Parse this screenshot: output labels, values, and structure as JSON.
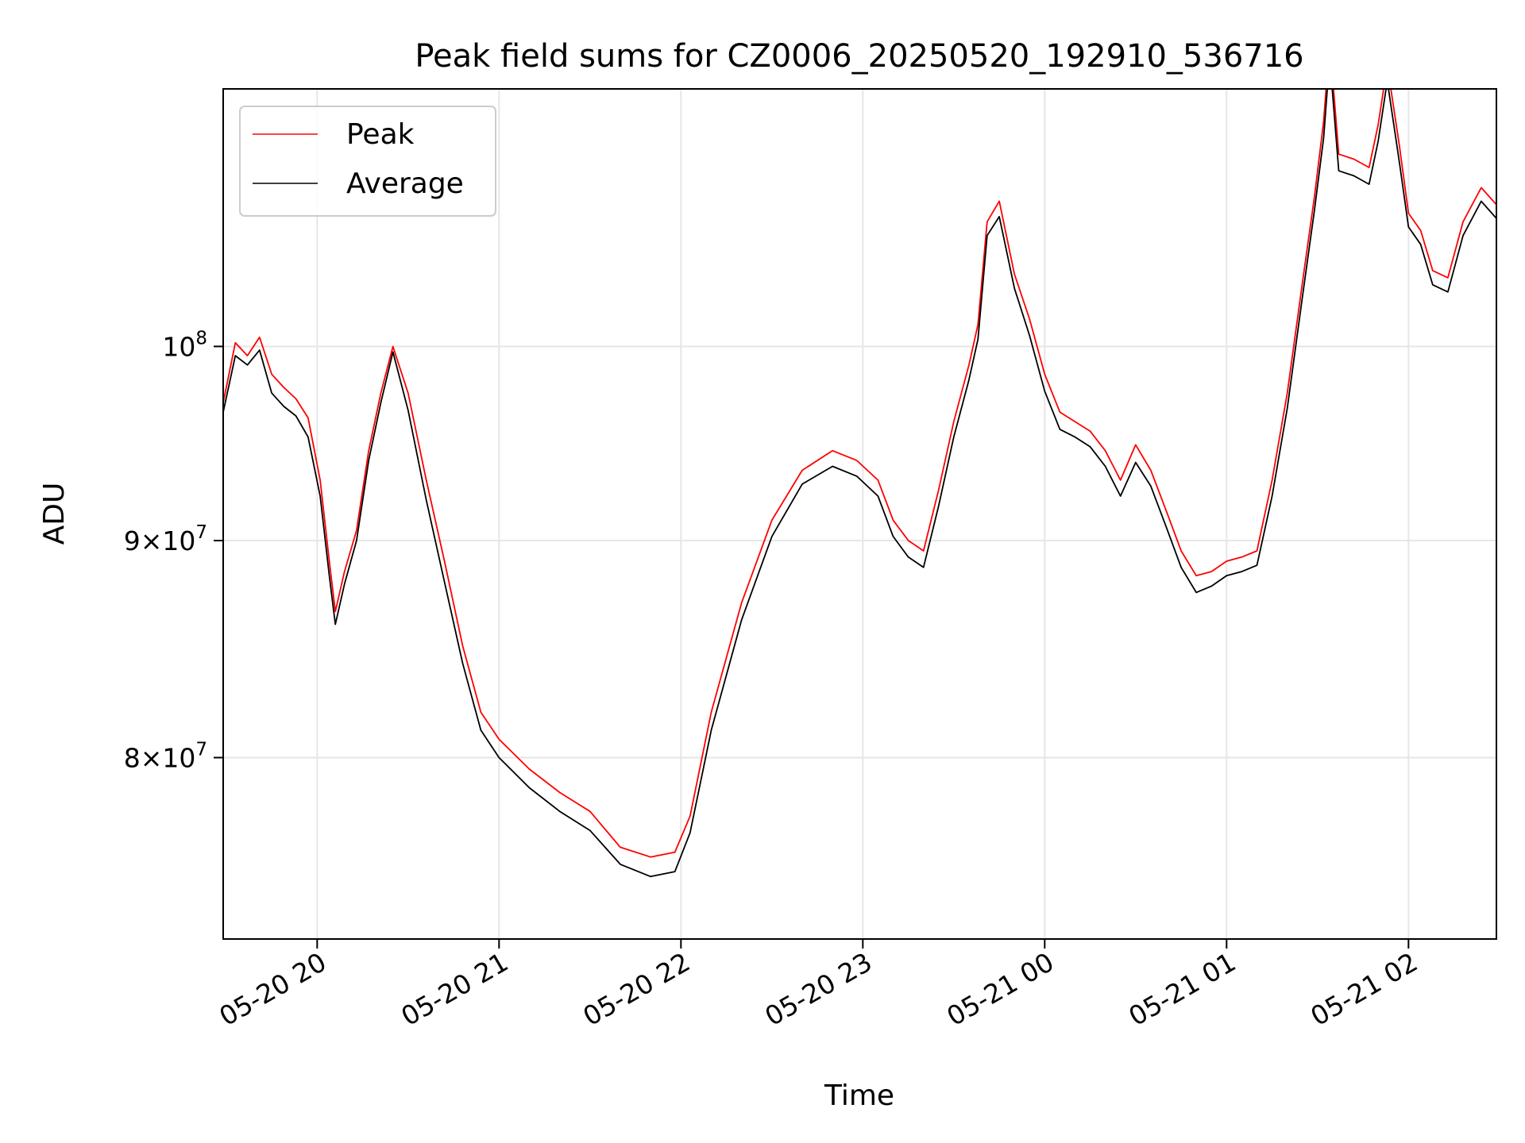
{
  "chart_data": {
    "type": "line",
    "title": "Peak field sums for CZ0006_20250520_192910_536716",
    "xlabel": "Time",
    "ylabel": "ADU",
    "y_scale": "log",
    "xlim": [
      "2025-05-20 19:29",
      "2025-05-21 02:29"
    ],
    "ylim": [
      72500000,
      115000000
    ],
    "x_ticks": [
      {
        "value": "2025-05-20 20:00",
        "label": "05-20 20"
      },
      {
        "value": "2025-05-20 21:00",
        "label": "05-20 21"
      },
      {
        "value": "2025-05-20 22:00",
        "label": "05-20 22"
      },
      {
        "value": "2025-05-20 23:00",
        "label": "05-20 23"
      },
      {
        "value": "2025-05-21 00:00",
        "label": "05-21 00"
      },
      {
        "value": "2025-05-21 01:00",
        "label": "05-21 01"
      },
      {
        "value": "2025-05-21 02:00",
        "label": "05-21 02"
      }
    ],
    "y_ticks": [
      {
        "value": 80000000,
        "mantissa": "8",
        "base": "10",
        "exponent": "7"
      },
      {
        "value": 90000000,
        "mantissa": "9",
        "base": "10",
        "exponent": "7"
      },
      {
        "value": 100000000,
        "mantissa": "",
        "base": "10",
        "exponent": "8"
      }
    ],
    "grid": true,
    "legend_position": "top-left",
    "series": [
      {
        "name": "Peak",
        "color": "#ff0000",
        "x": [
          "2025-05-20 19:29",
          "2025-05-20 19:33",
          "2025-05-20 19:37",
          "2025-05-20 19:41",
          "2025-05-20 19:45",
          "2025-05-20 19:49",
          "2025-05-20 19:53",
          "2025-05-20 19:57",
          "2025-05-20 20:01",
          "2025-05-20 20:04",
          "2025-05-20 20:06",
          "2025-05-20 20:09",
          "2025-05-20 20:13",
          "2025-05-20 20:17",
          "2025-05-20 20:21",
          "2025-05-20 20:25",
          "2025-05-20 20:30",
          "2025-05-20 20:36",
          "2025-05-20 20:42",
          "2025-05-20 20:48",
          "2025-05-20 20:54",
          "2025-05-20 21:00",
          "2025-05-20 21:10",
          "2025-05-20 21:20",
          "2025-05-20 21:30",
          "2025-05-20 21:40",
          "2025-05-20 21:50",
          "2025-05-20 21:58",
          "2025-05-20 22:03",
          "2025-05-20 22:10",
          "2025-05-20 22:20",
          "2025-05-20 22:30",
          "2025-05-20 22:40",
          "2025-05-20 22:50",
          "2025-05-20 22:58",
          "2025-05-20 23:05",
          "2025-05-20 23:10",
          "2025-05-20 23:15",
          "2025-05-20 23:20",
          "2025-05-20 23:25",
          "2025-05-20 23:30",
          "2025-05-20 23:35",
          "2025-05-20 23:38",
          "2025-05-20 23:41",
          "2025-05-20 23:45",
          "2025-05-20 23:50",
          "2025-05-20 23:55",
          "2025-05-21 00:00",
          "2025-05-21 00:05",
          "2025-05-21 00:10",
          "2025-05-21 00:15",
          "2025-05-21 00:20",
          "2025-05-21 00:25",
          "2025-05-21 00:30",
          "2025-05-21 00:35",
          "2025-05-21 00:40",
          "2025-05-21 00:45",
          "2025-05-21 00:50",
          "2025-05-21 00:55",
          "2025-05-21 01:00",
          "2025-05-21 01:05",
          "2025-05-21 01:10",
          "2025-05-21 01:15",
          "2025-05-21 01:20",
          "2025-05-21 01:25",
          "2025-05-21 01:29",
          "2025-05-21 01:32",
          "2025-05-21 01:34",
          "2025-05-21 01:37",
          "2025-05-21 01:42",
          "2025-05-21 01:47",
          "2025-05-21 01:50",
          "2025-05-21 01:53",
          "2025-05-21 01:57",
          "2025-05-21 02:00",
          "2025-05-21 02:04",
          "2025-05-21 02:08",
          "2025-05-21 02:13",
          "2025-05-21 02:18",
          "2025-05-21 02:24",
          "2025-05-21 02:29"
        ],
        "values": [
          97000000,
          100200000,
          99500000,
          100500000,
          98500000,
          97800000,
          97200000,
          96200000,
          93000000,
          89000000,
          86600000,
          88500000,
          90500000,
          94500000,
          97500000,
          100000000,
          97500000,
          93000000,
          89000000,
          85000000,
          82000000,
          80800000,
          79500000,
          78500000,
          77700000,
          76200000,
          75800000,
          76000000,
          77500000,
          82000000,
          87000000,
          91000000,
          93500000,
          94500000,
          94000000,
          93000000,
          91000000,
          90000000,
          89500000,
          92500000,
          96000000,
          99000000,
          101200000,
          107000000,
          108200000,
          104000000,
          101500000,
          98500000,
          96500000,
          96000000,
          95500000,
          94500000,
          93000000,
          94800000,
          93500000,
          91500000,
          89500000,
          88300000,
          88500000,
          89000000,
          89200000,
          89500000,
          93000000,
          97500000,
          103500000,
          108500000,
          113000000,
          118000000,
          111000000,
          110700000,
          110200000,
          112800000,
          116500000,
          111500000,
          107500000,
          106500000,
          104200000,
          103800000,
          107000000,
          109000000,
          108000000
        ]
      },
      {
        "name": "Average",
        "color": "#000000",
        "x": [
          "2025-05-20 19:29",
          "2025-05-20 19:33",
          "2025-05-20 19:37",
          "2025-05-20 19:41",
          "2025-05-20 19:45",
          "2025-05-20 19:49",
          "2025-05-20 19:53",
          "2025-05-20 19:57",
          "2025-05-20 20:01",
          "2025-05-20 20:04",
          "2025-05-20 20:06",
          "2025-05-20 20:09",
          "2025-05-20 20:13",
          "2025-05-20 20:17",
          "2025-05-20 20:21",
          "2025-05-20 20:25",
          "2025-05-20 20:30",
          "2025-05-20 20:36",
          "2025-05-20 20:42",
          "2025-05-20 20:48",
          "2025-05-20 20:54",
          "2025-05-20 21:00",
          "2025-05-20 21:10",
          "2025-05-20 21:20",
          "2025-05-20 21:30",
          "2025-05-20 21:40",
          "2025-05-20 21:50",
          "2025-05-20 21:58",
          "2025-05-20 22:03",
          "2025-05-20 22:10",
          "2025-05-20 22:20",
          "2025-05-20 22:30",
          "2025-05-20 22:40",
          "2025-05-20 22:50",
          "2025-05-20 22:58",
          "2025-05-20 23:05",
          "2025-05-20 23:10",
          "2025-05-20 23:15",
          "2025-05-20 23:20",
          "2025-05-20 23:25",
          "2025-05-20 23:30",
          "2025-05-20 23:35",
          "2025-05-20 23:38",
          "2025-05-20 23:41",
          "2025-05-20 23:45",
          "2025-05-20 23:50",
          "2025-05-20 23:55",
          "2025-05-21 00:00",
          "2025-05-21 00:05",
          "2025-05-21 00:10",
          "2025-05-21 00:15",
          "2025-05-21 00:20",
          "2025-05-21 00:25",
          "2025-05-21 00:30",
          "2025-05-21 00:35",
          "2025-05-21 00:40",
          "2025-05-21 00:45",
          "2025-05-21 00:50",
          "2025-05-21 00:55",
          "2025-05-21 01:00",
          "2025-05-21 01:05",
          "2025-05-21 01:10",
          "2025-05-21 01:15",
          "2025-05-21 01:20",
          "2025-05-21 01:25",
          "2025-05-21 01:29",
          "2025-05-21 01:32",
          "2025-05-21 01:34",
          "2025-05-21 01:37",
          "2025-05-21 01:42",
          "2025-05-21 01:47",
          "2025-05-21 01:50",
          "2025-05-21 01:53",
          "2025-05-21 01:57",
          "2025-05-21 02:00",
          "2025-05-21 02:04",
          "2025-05-21 02:08",
          "2025-05-21 02:13",
          "2025-05-21 02:18",
          "2025-05-21 02:24",
          "2025-05-21 02:29"
        ],
        "values": [
          96500000,
          99500000,
          99000000,
          99800000,
          97500000,
          96800000,
          96300000,
          95200000,
          92200000,
          88300000,
          86000000,
          87900000,
          90000000,
          94000000,
          97000000,
          99700000,
          96600000,
          92000000,
          88000000,
          84200000,
          81200000,
          80000000,
          78700000,
          77700000,
          76900000,
          75500000,
          75000000,
          75200000,
          76800000,
          81200000,
          86200000,
          90200000,
          92800000,
          93700000,
          93200000,
          92200000,
          90200000,
          89200000,
          88700000,
          91700000,
          95200000,
          98200000,
          100400000,
          106200000,
          107300000,
          103200000,
          100600000,
          97600000,
          95600000,
          95200000,
          94700000,
          93700000,
          92200000,
          93900000,
          92700000,
          90700000,
          88700000,
          87500000,
          87800000,
          88300000,
          88500000,
          88800000,
          92200000,
          96700000,
          102700000,
          107700000,
          112000000,
          117000000,
          110000000,
          109700000,
          109200000,
          111800000,
          115500000,
          110500000,
          106700000,
          105700000,
          103400000,
          103000000,
          106200000,
          108200000,
          107200000
        ]
      }
    ]
  }
}
